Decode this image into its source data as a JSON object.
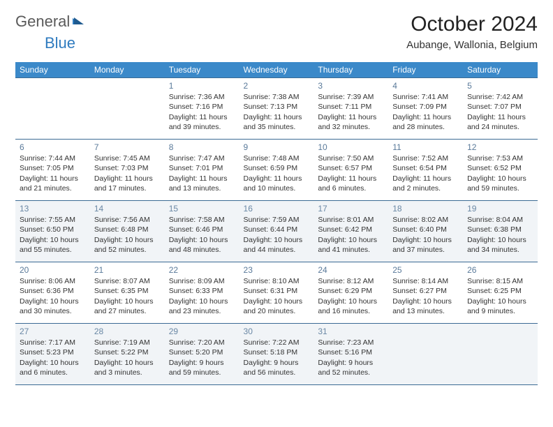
{
  "logo": {
    "text_gray": "General",
    "text_blue": "Blue"
  },
  "title": "October 2024",
  "location": "Aubange, Wallonia, Belgium",
  "colors": {
    "header_bg": "#3b89c9",
    "border": "#3b6a94",
    "alt_row_bg": "#f1f4f7",
    "logo_gray": "#5a5a5a",
    "logo_blue": "#2f7bbf",
    "daynum": "#5a7a9a"
  },
  "days_of_week": [
    "Sunday",
    "Monday",
    "Tuesday",
    "Wednesday",
    "Thursday",
    "Friday",
    "Saturday"
  ],
  "weeks": [
    [
      null,
      null,
      {
        "n": "1",
        "sr": "Sunrise: 7:36 AM",
        "ss": "Sunset: 7:16 PM",
        "dl": "Daylight: 11 hours and 39 minutes."
      },
      {
        "n": "2",
        "sr": "Sunrise: 7:38 AM",
        "ss": "Sunset: 7:13 PM",
        "dl": "Daylight: 11 hours and 35 minutes."
      },
      {
        "n": "3",
        "sr": "Sunrise: 7:39 AM",
        "ss": "Sunset: 7:11 PM",
        "dl": "Daylight: 11 hours and 32 minutes."
      },
      {
        "n": "4",
        "sr": "Sunrise: 7:41 AM",
        "ss": "Sunset: 7:09 PM",
        "dl": "Daylight: 11 hours and 28 minutes."
      },
      {
        "n": "5",
        "sr": "Sunrise: 7:42 AM",
        "ss": "Sunset: 7:07 PM",
        "dl": "Daylight: 11 hours and 24 minutes."
      }
    ],
    [
      {
        "n": "6",
        "sr": "Sunrise: 7:44 AM",
        "ss": "Sunset: 7:05 PM",
        "dl": "Daylight: 11 hours and 21 minutes."
      },
      {
        "n": "7",
        "sr": "Sunrise: 7:45 AM",
        "ss": "Sunset: 7:03 PM",
        "dl": "Daylight: 11 hours and 17 minutes."
      },
      {
        "n": "8",
        "sr": "Sunrise: 7:47 AM",
        "ss": "Sunset: 7:01 PM",
        "dl": "Daylight: 11 hours and 13 minutes."
      },
      {
        "n": "9",
        "sr": "Sunrise: 7:48 AM",
        "ss": "Sunset: 6:59 PM",
        "dl": "Daylight: 11 hours and 10 minutes."
      },
      {
        "n": "10",
        "sr": "Sunrise: 7:50 AM",
        "ss": "Sunset: 6:57 PM",
        "dl": "Daylight: 11 hours and 6 minutes."
      },
      {
        "n": "11",
        "sr": "Sunrise: 7:52 AM",
        "ss": "Sunset: 6:54 PM",
        "dl": "Daylight: 11 hours and 2 minutes."
      },
      {
        "n": "12",
        "sr": "Sunrise: 7:53 AM",
        "ss": "Sunset: 6:52 PM",
        "dl": "Daylight: 10 hours and 59 minutes."
      }
    ],
    [
      {
        "n": "13",
        "sr": "Sunrise: 7:55 AM",
        "ss": "Sunset: 6:50 PM",
        "dl": "Daylight: 10 hours and 55 minutes."
      },
      {
        "n": "14",
        "sr": "Sunrise: 7:56 AM",
        "ss": "Sunset: 6:48 PM",
        "dl": "Daylight: 10 hours and 52 minutes."
      },
      {
        "n": "15",
        "sr": "Sunrise: 7:58 AM",
        "ss": "Sunset: 6:46 PM",
        "dl": "Daylight: 10 hours and 48 minutes."
      },
      {
        "n": "16",
        "sr": "Sunrise: 7:59 AM",
        "ss": "Sunset: 6:44 PM",
        "dl": "Daylight: 10 hours and 44 minutes."
      },
      {
        "n": "17",
        "sr": "Sunrise: 8:01 AM",
        "ss": "Sunset: 6:42 PM",
        "dl": "Daylight: 10 hours and 41 minutes."
      },
      {
        "n": "18",
        "sr": "Sunrise: 8:02 AM",
        "ss": "Sunset: 6:40 PM",
        "dl": "Daylight: 10 hours and 37 minutes."
      },
      {
        "n": "19",
        "sr": "Sunrise: 8:04 AM",
        "ss": "Sunset: 6:38 PM",
        "dl": "Daylight: 10 hours and 34 minutes."
      }
    ],
    [
      {
        "n": "20",
        "sr": "Sunrise: 8:06 AM",
        "ss": "Sunset: 6:36 PM",
        "dl": "Daylight: 10 hours and 30 minutes."
      },
      {
        "n": "21",
        "sr": "Sunrise: 8:07 AM",
        "ss": "Sunset: 6:35 PM",
        "dl": "Daylight: 10 hours and 27 minutes."
      },
      {
        "n": "22",
        "sr": "Sunrise: 8:09 AM",
        "ss": "Sunset: 6:33 PM",
        "dl": "Daylight: 10 hours and 23 minutes."
      },
      {
        "n": "23",
        "sr": "Sunrise: 8:10 AM",
        "ss": "Sunset: 6:31 PM",
        "dl": "Daylight: 10 hours and 20 minutes."
      },
      {
        "n": "24",
        "sr": "Sunrise: 8:12 AM",
        "ss": "Sunset: 6:29 PM",
        "dl": "Daylight: 10 hours and 16 minutes."
      },
      {
        "n": "25",
        "sr": "Sunrise: 8:14 AM",
        "ss": "Sunset: 6:27 PM",
        "dl": "Daylight: 10 hours and 13 minutes."
      },
      {
        "n": "26",
        "sr": "Sunrise: 8:15 AM",
        "ss": "Sunset: 6:25 PM",
        "dl": "Daylight: 10 hours and 9 minutes."
      }
    ],
    [
      {
        "n": "27",
        "sr": "Sunrise: 7:17 AM",
        "ss": "Sunset: 5:23 PM",
        "dl": "Daylight: 10 hours and 6 minutes."
      },
      {
        "n": "28",
        "sr": "Sunrise: 7:19 AM",
        "ss": "Sunset: 5:22 PM",
        "dl": "Daylight: 10 hours and 3 minutes."
      },
      {
        "n": "29",
        "sr": "Sunrise: 7:20 AM",
        "ss": "Sunset: 5:20 PM",
        "dl": "Daylight: 9 hours and 59 minutes."
      },
      {
        "n": "30",
        "sr": "Sunrise: 7:22 AM",
        "ss": "Sunset: 5:18 PM",
        "dl": "Daylight: 9 hours and 56 minutes."
      },
      {
        "n": "31",
        "sr": "Sunrise: 7:23 AM",
        "ss": "Sunset: 5:16 PM",
        "dl": "Daylight: 9 hours and 52 minutes."
      },
      null,
      null
    ]
  ]
}
